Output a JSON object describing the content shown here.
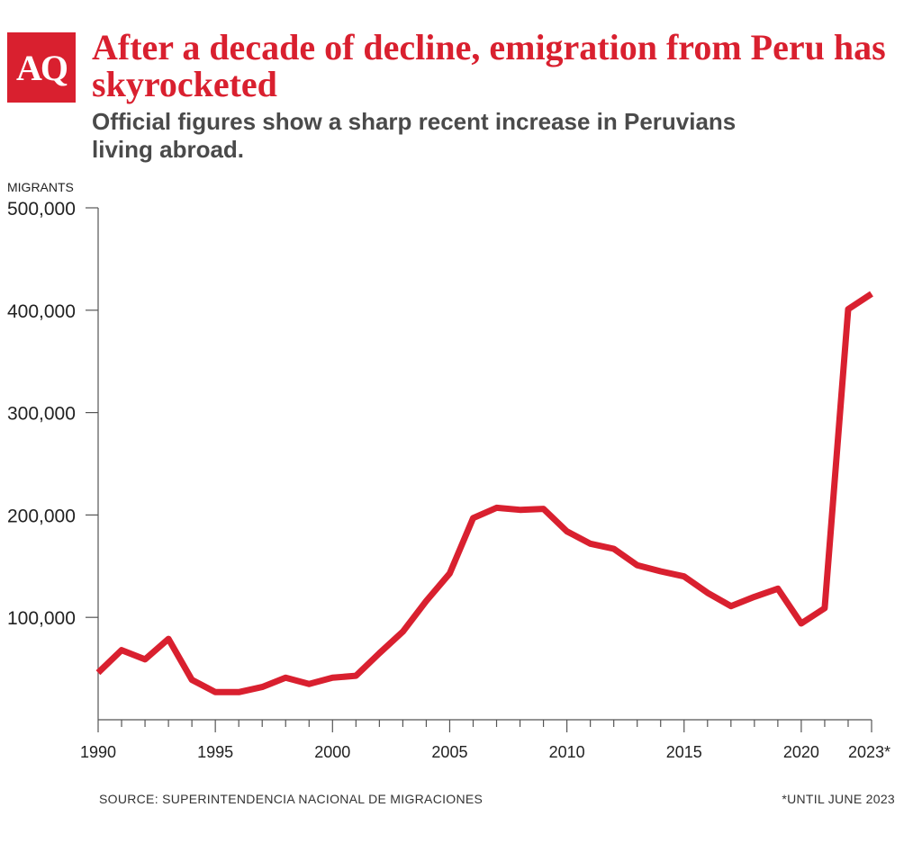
{
  "logo": {
    "text": "AQ"
  },
  "header": {
    "title": "After a decade of decline, emigration from Peru has skyrocketed",
    "subtitle": "Official figures show a sharp recent increase in Peruvians living abroad."
  },
  "footer": {
    "source": "SOURCE: SUPERINTENDENCIA NACIONAL DE MIGRACIONES",
    "note": "*UNTIL JUNE 2023"
  },
  "colors": {
    "accent": "#d9202f",
    "subtitle": "#4a4a4a",
    "axis": "#555555"
  },
  "chart_data": {
    "type": "line",
    "title": "After a decade of decline, emigration from Peru has skyrocketed",
    "subtitle": "Official figures show a sharp recent increase in Peruvians living abroad.",
    "ylabel": "MIGRANTS",
    "xlabel": "",
    "ylim": [
      0,
      500000
    ],
    "xlim": [
      1990,
      2023
    ],
    "y_ticks": [
      {
        "value": 100000,
        "label": "100,000"
      },
      {
        "value": 200000,
        "label": "200,000"
      },
      {
        "value": 300000,
        "label": "300,000"
      },
      {
        "value": 400000,
        "label": "400,000"
      },
      {
        "value": 500000,
        "label": "500,000"
      }
    ],
    "x_ticks": [
      {
        "value": 1990,
        "label": "1990"
      },
      {
        "value": 1995,
        "label": "1995"
      },
      {
        "value": 2000,
        "label": "2000"
      },
      {
        "value": 2005,
        "label": "2005"
      },
      {
        "value": 2010,
        "label": "2010"
      },
      {
        "value": 2015,
        "label": "2015"
      },
      {
        "value": 2020,
        "label": "2020"
      },
      {
        "value": 2023,
        "label": "2023*"
      }
    ],
    "grid": false,
    "series": [
      {
        "color": "#d9202f",
        "x": [
          1990,
          1991,
          1992,
          1993,
          1994,
          1995,
          1996,
          1997,
          1998,
          1999,
          2000,
          2001,
          2002,
          2003,
          2004,
          2005,
          2006,
          2007,
          2008,
          2009,
          2010,
          2011,
          2012,
          2013,
          2014,
          2015,
          2016,
          2017,
          2018,
          2019,
          2020,
          2021,
          2022,
          2023
        ],
        "values": [
          46000,
          68000,
          59000,
          79000,
          39000,
          27000,
          27000,
          32000,
          41000,
          35000,
          41000,
          43000,
          65000,
          86000,
          116000,
          143000,
          197000,
          207000,
          205000,
          206000,
          184000,
          172000,
          167000,
          151000,
          145000,
          140000,
          124000,
          111000,
          120000,
          128000,
          94000,
          109000,
          401000,
          416000
        ]
      }
    ]
  }
}
